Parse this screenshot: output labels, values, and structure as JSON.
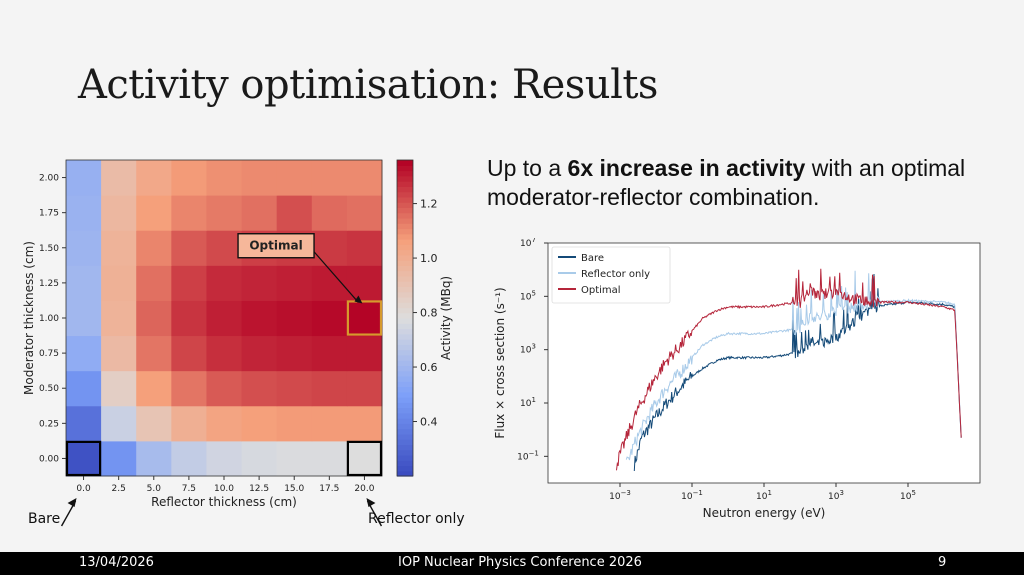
{
  "slide": {
    "title": "Activity optimisation: Results",
    "bullet_pre": "Up to a ",
    "bullet_bold": "6x increase in activity",
    "bullet_post": " with an optimal moderator-reflector combination.",
    "caption_bare": "Bare",
    "caption_reflector": "Reflector only",
    "footer_date": "13/04/2026",
    "footer_conf": "IOP Nuclear Physics Conference 2026",
    "footer_page": "9"
  },
  "chart_data": [
    {
      "type": "heatmap",
      "xlabel": "Reflector thickness (cm)",
      "ylabel": "Moderator thickness (cm)",
      "x": [
        0.0,
        2.5,
        5.0,
        7.5,
        10.0,
        12.5,
        15.0,
        17.5,
        20.0
      ],
      "x_tick_labels": [
        "0.0",
        "2.5",
        "5.0",
        "7.5",
        "10.0",
        "12.5",
        "15.0",
        "17.5",
        "20.0"
      ],
      "y": [
        0.0,
        0.25,
        0.5,
        0.75,
        1.0,
        1.25,
        1.5,
        1.75,
        2.0
      ],
      "y_tick_labels": [
        "0.00",
        "0.25",
        "0.50",
        "0.75",
        "1.00",
        "1.25",
        "1.50",
        "1.75",
        "2.00"
      ],
      "values_by_row_y": [
        [
          0.22,
          0.45,
          0.62,
          0.7,
          0.74,
          0.76,
          0.77,
          0.77,
          0.78
        ],
        [
          0.33,
          0.72,
          0.9,
          1.0,
          1.05,
          1.07,
          1.08,
          1.08,
          1.08
        ],
        [
          0.45,
          0.85,
          1.07,
          1.15,
          1.2,
          1.22,
          1.23,
          1.24,
          1.24
        ],
        [
          0.55,
          0.95,
          1.15,
          1.24,
          1.28,
          1.3,
          1.31,
          1.32,
          1.32
        ],
        [
          0.6,
          0.98,
          1.18,
          1.27,
          1.31,
          1.33,
          1.34,
          1.35,
          1.36
        ],
        [
          0.6,
          0.99,
          1.16,
          1.25,
          1.29,
          1.3,
          1.31,
          1.32,
          1.32
        ],
        [
          0.59,
          0.98,
          1.12,
          1.2,
          1.23,
          1.25,
          1.26,
          1.26,
          1.27
        ],
        [
          0.58,
          0.96,
          1.07,
          1.12,
          1.14,
          1.16,
          1.22,
          1.17,
          1.16
        ],
        [
          0.57,
          0.94,
          1.03,
          1.08,
          1.1,
          1.11,
          1.11,
          1.11,
          1.11
        ]
      ],
      "colorbar": {
        "label": "Activity (MBq)",
        "range": [
          0.2,
          1.36
        ],
        "ticks": [
          0.4,
          0.6,
          0.8,
          1.0,
          1.2
        ],
        "tick_labels": [
          "0.4",
          "0.6",
          "0.8",
          "1.0",
          "1.2"
        ]
      },
      "highlights": [
        {
          "label": "",
          "x": 0.0,
          "y": 0.0,
          "color": "#000000"
        },
        {
          "label": "",
          "x": 20.0,
          "y": 0.0,
          "color": "#000000"
        },
        {
          "label": "Optimal",
          "x": 20.0,
          "y": 1.0,
          "color": "#d69a2d"
        }
      ]
    },
    {
      "type": "line",
      "xlabel": "Neutron energy (eV)",
      "ylabel": "Flux × cross section (s⁻¹)",
      "x_scale": "log",
      "y_scale": "log",
      "xlim": [
        1e-05,
        10000000.0
      ],
      "ylim": [
        0.01,
        10000000.0
      ],
      "x_ticks": [
        0.001,
        0.1,
        10.0,
        1000.0,
        100000.0
      ],
      "y_ticks": [
        0.1,
        10.0,
        1000.0,
        100000.0,
        10000000.0
      ],
      "legend": "top-left",
      "series": [
        {
          "name": "Bare",
          "color": "#144a78",
          "x": [
            0.0025,
            0.004,
            0.007,
            0.01,
            0.02,
            0.05,
            0.1,
            0.2,
            0.5,
            1,
            2,
            5,
            10,
            30,
            100,
            200,
            300,
            1000,
            3000,
            10000,
            100000,
            1000000,
            2000000,
            3000000
          ],
          "y": [
            0.05,
            0.5,
            1.5,
            3,
            10,
            40,
            100,
            200,
            400,
            500,
            500,
            500,
            500,
            600,
            800,
            2000,
            1500,
            3000,
            10000,
            40000,
            60000,
            50000,
            40000,
            0.5
          ]
        },
        {
          "name": "Reflector only",
          "color": "#a9cbe9",
          "x": [
            0.0015,
            0.003,
            0.006,
            0.01,
            0.02,
            0.05,
            0.1,
            0.2,
            0.5,
            1,
            2,
            5,
            10,
            30,
            100,
            200,
            300,
            1000,
            3000,
            10000,
            100000,
            1000000,
            2000000,
            3000000
          ],
          "y": [
            0.05,
            0.5,
            3,
            10,
            40,
            150,
            500,
            1500,
            3000,
            4000,
            4000,
            4000,
            4000,
            5000,
            6000,
            20000,
            15000,
            30000,
            40000,
            60000,
            70000,
            60000,
            50000,
            0.5
          ]
        },
        {
          "name": "Optimal",
          "color": "#b5253a",
          "x": [
            0.0008,
            0.0015,
            0.003,
            0.006,
            0.01,
            0.02,
            0.05,
            0.1,
            0.2,
            0.5,
            1,
            2,
            5,
            10,
            30,
            100,
            200,
            300,
            1000,
            3000,
            10000,
            100000,
            1000000,
            2000000,
            3000000
          ],
          "y": [
            0.05,
            0.5,
            5,
            30,
            100,
            400,
            1500,
            5000,
            15000,
            30000,
            40000,
            40000,
            40000,
            40000,
            50000,
            60000,
            200000,
            100000,
            150000,
            80000,
            60000,
            60000,
            40000,
            30000,
            0.5
          ]
        }
      ]
    }
  ]
}
